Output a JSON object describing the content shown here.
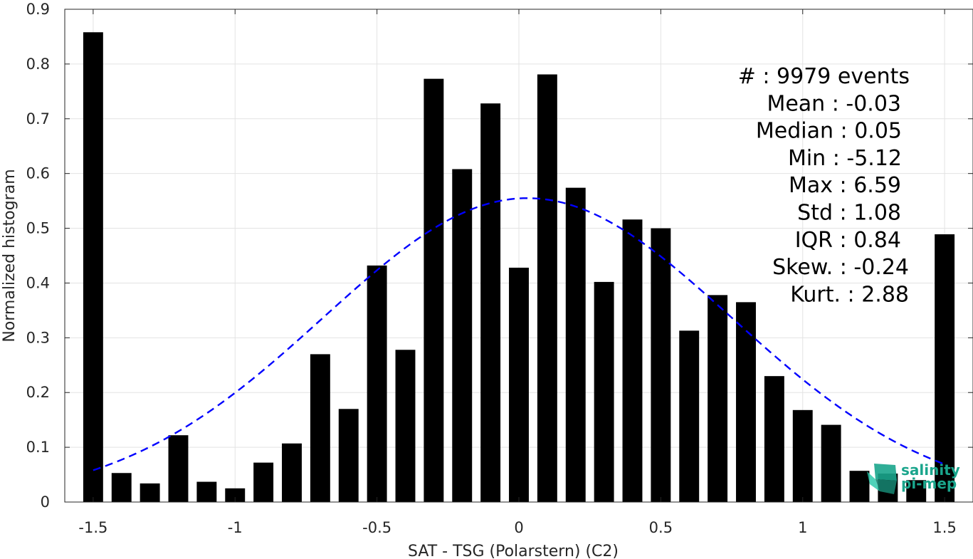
{
  "chart_data": {
    "type": "bar",
    "title": "",
    "xlabel": "SAT - TSG (Polarstern) (C2)",
    "ylabel": "Normalized histogram",
    "xlim": [
      -1.6,
      1.6
    ],
    "ylim": [
      0,
      0.9
    ],
    "xticks": [
      -1.5,
      -1,
      -0.5,
      0,
      0.5,
      1,
      1.5
    ],
    "xtick_labels": [
      "-1.5",
      "-1",
      "-0.5",
      "0",
      "0.5",
      "1",
      "1.5"
    ],
    "yticks": [
      0,
      0.1,
      0.2,
      0.3,
      0.4,
      0.5,
      0.6,
      0.7,
      0.8,
      0.9
    ],
    "ytick_labels": [
      "0",
      "0.1",
      "0.2",
      "0.3",
      "0.4",
      "0.5",
      "0.6",
      "0.7",
      "0.8",
      "0.9"
    ],
    "grid": true,
    "bar_color": "#000000",
    "bar_width": 0.07,
    "x": [
      -1.5,
      -1.4,
      -1.3,
      -1.2,
      -1.1,
      -1.0,
      -0.9,
      -0.8,
      -0.7,
      -0.6,
      -0.5,
      -0.4,
      -0.3,
      -0.2,
      -0.1,
      0.0,
      0.1,
      0.2,
      0.3,
      0.4,
      0.5,
      0.6,
      0.7,
      0.8,
      0.9,
      1.0,
      1.1,
      1.2,
      1.3,
      1.4,
      1.5
    ],
    "values": [
      0.858,
      0.053,
      0.034,
      0.122,
      0.037,
      0.025,
      0.072,
      0.107,
      0.27,
      0.17,
      0.432,
      0.278,
      0.773,
      0.608,
      0.728,
      0.428,
      0.781,
      0.574,
      0.402,
      0.516,
      0.5,
      0.313,
      0.378,
      0.365,
      0.23,
      0.168,
      0.141,
      0.057,
      0.052,
      0.04,
      0.489
    ],
    "fit_curve": {
      "type": "normal",
      "mean": 0.03,
      "std": 0.72,
      "peak": 0.555,
      "color": "#0000ff",
      "style": "dashed",
      "x_range": [
        -1.5,
        1.5
      ]
    },
    "annotations": [
      "#  : 9979 events",
      "Mean : -0.03",
      "Median : 0.05",
      "Min : -5.12",
      "Max : 6.59",
      "Std : 1.08",
      "IQR : 0.84",
      "Skew. : -0.24",
      "Kurt. : 2.88"
    ]
  },
  "logo": {
    "line1": "salinity",
    "line2": "pi-mep",
    "color": "#1aa58c"
  }
}
